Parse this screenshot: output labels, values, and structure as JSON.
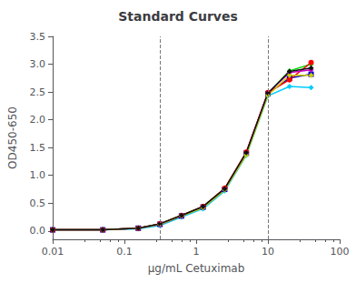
{
  "chart_data": {
    "type": "line",
    "title": "Standard Curves",
    "xlabel": "μg/mL Cetuximab",
    "ylabel": "OD450-650",
    "log": "x",
    "grid": false,
    "xlim": [
      0.01,
      100
    ],
    "xticks": [
      0.01,
      0.1,
      1,
      10,
      100
    ],
    "ylim": [
      -0.15,
      3.5
    ],
    "yticks": [
      {
        "value": 0.0,
        "label": "0.0"
      },
      0.5,
      {
        "value": 1.0,
        "label": "1.0"
      },
      1.5,
      {
        "value": 2.0,
        "label": "2.0"
      },
      2.5,
      {
        "value": 3.0,
        "label": "3.0"
      },
      3.5
    ],
    "x": [
      0.01,
      0.05,
      0.156,
      0.313,
      0.625,
      1.25,
      2.5,
      5.0,
      10.0,
      20.0,
      40.0
    ],
    "series": [
      {
        "color": "#00ccff",
        "marker": "diamond",
        "values": [
          0.02,
          0.02,
          0.04,
          0.1,
          0.25,
          0.4,
          0.72,
          1.36,
          2.43,
          2.6,
          2.58
        ]
      },
      {
        "color": "#0000cc",
        "marker": "square",
        "values": [
          0.02,
          0.02,
          0.05,
          0.12,
          0.27,
          0.43,
          0.75,
          1.4,
          2.47,
          2.75,
          2.82
        ]
      },
      {
        "color": "#00dd00",
        "marker": "diamond",
        "values": [
          0.02,
          0.02,
          0.05,
          0.13,
          0.28,
          0.44,
          0.76,
          1.41,
          2.47,
          2.88,
          3.0
        ]
      },
      {
        "color": "#ff0000",
        "marker": "circle",
        "values": [
          0.02,
          0.02,
          0.05,
          0.13,
          0.28,
          0.44,
          0.77,
          1.42,
          2.49,
          2.72,
          3.03
        ]
      },
      {
        "color": "#cc00cc",
        "marker": "diamond",
        "values": [
          0.02,
          0.02,
          0.05,
          0.12,
          0.27,
          0.43,
          0.75,
          1.4,
          2.48,
          2.85,
          2.9
        ]
      },
      {
        "color": "#cccc00",
        "marker": "diamond",
        "values": [
          0.02,
          0.02,
          0.05,
          0.12,
          0.27,
          0.42,
          0.74,
          1.37,
          2.44,
          2.8,
          2.8
        ]
      },
      {
        "color": "#111111",
        "marker": "diamond",
        "values": [
          0.02,
          0.02,
          0.05,
          0.13,
          0.28,
          0.44,
          0.76,
          1.41,
          2.48,
          2.87,
          2.93
        ]
      }
    ],
    "vlines": {
      "values": [
        0.31,
        10.0
      ],
      "color": "#777777",
      "line_style": "dashed"
    }
  }
}
